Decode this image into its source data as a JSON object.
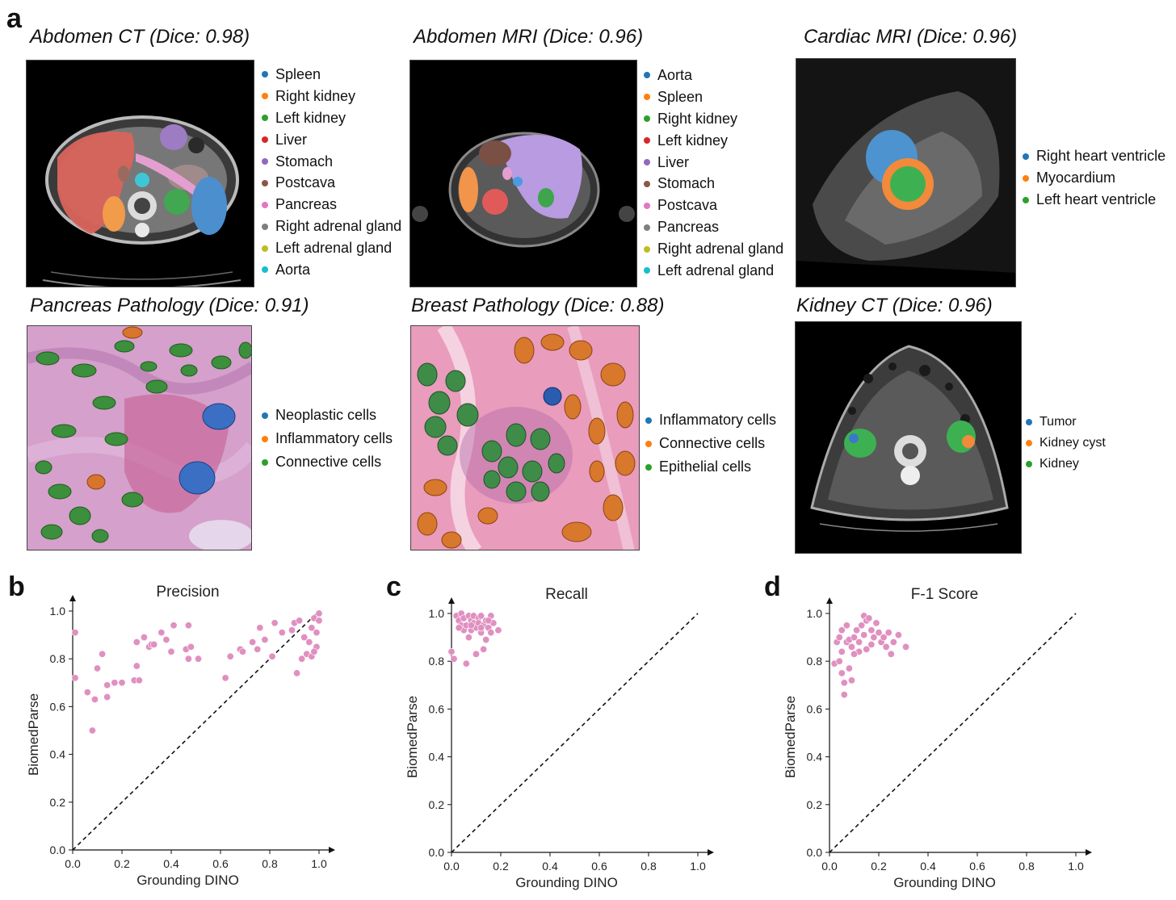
{
  "panels": {
    "a_letter": "a",
    "b_letter": "b",
    "c_letter": "c",
    "d_letter": "d"
  },
  "seg_panels": [
    {
      "title": "Abdomen CT (Dice: 0.98)",
      "legend": [
        {
          "label": "Spleen",
          "color": "#1f77b4"
        },
        {
          "label": "Right kidney",
          "color": "#ff7f0e"
        },
        {
          "label": "Left kidney",
          "color": "#2ca02c"
        },
        {
          "label": "Liver",
          "color": "#d62728"
        },
        {
          "label": "Stomach",
          "color": "#9467bd"
        },
        {
          "label": "Postcava",
          "color": "#8c564b"
        },
        {
          "label": "Pancreas",
          "color": "#e377c2"
        },
        {
          "label": "Right adrenal gland",
          "color": "#7f7f7f"
        },
        {
          "label": "Left adrenal gland",
          "color": "#bcbd22"
        },
        {
          "label": "Aorta",
          "color": "#17becf"
        }
      ]
    },
    {
      "title": "Abdomen MRI (Dice: 0.96)",
      "legend": [
        {
          "label": "Aorta",
          "color": "#1f77b4"
        },
        {
          "label": "Spleen",
          "color": "#ff7f0e"
        },
        {
          "label": "Right kidney",
          "color": "#2ca02c"
        },
        {
          "label": "Left kidney",
          "color": "#d62728"
        },
        {
          "label": "Liver",
          "color": "#9467bd"
        },
        {
          "label": "Stomach",
          "color": "#8c564b"
        },
        {
          "label": "Postcava",
          "color": "#e377c2"
        },
        {
          "label": "Pancreas",
          "color": "#7f7f7f"
        },
        {
          "label": "Right adrenal gland",
          "color": "#bcbd22"
        },
        {
          "label": "Left adrenal gland",
          "color": "#17becf"
        }
      ]
    },
    {
      "title": "Cardiac MRI (Dice: 0.96)",
      "legend": [
        {
          "label": "Right heart ventricle",
          "color": "#1f77b4"
        },
        {
          "label": "Myocardium",
          "color": "#ff7f0e"
        },
        {
          "label": "Left heart ventricle",
          "color": "#2ca02c"
        }
      ]
    },
    {
      "title": "Pancreas Pathology (Dice: 0.91)",
      "legend": [
        {
          "label": "Neoplastic cells",
          "color": "#1f77b4"
        },
        {
          "label": "Inflammatory cells",
          "color": "#ff7f0e"
        },
        {
          "label": "Connective cells",
          "color": "#2ca02c"
        }
      ]
    },
    {
      "title": "Breast Pathology (Dice: 0.88)",
      "legend": [
        {
          "label": "Inflammatory cells",
          "color": "#1f77b4"
        },
        {
          "label": "Connective cells",
          "color": "#ff7f0e"
        },
        {
          "label": "Epithelial cells",
          "color": "#2ca02c"
        }
      ]
    },
    {
      "title": "Kidney CT (Dice: 0.96)",
      "legend": [
        {
          "label": "Tumor",
          "color": "#1f77b4"
        },
        {
          "label": "Kidney cyst",
          "color": "#ff7f0e"
        },
        {
          "label": "Kidney",
          "color": "#2ca02c"
        }
      ]
    }
  ],
  "chart_data": [
    {
      "type": "scatter",
      "title": "Precision",
      "xlabel": "Grounding DINO",
      "ylabel": "BiomedParse",
      "xlim": [
        0,
        1.0
      ],
      "ylim": [
        0,
        1.0
      ],
      "xticks": [
        "0.0",
        "0.2",
        "0.4",
        "0.6",
        "0.8",
        "1.0"
      ],
      "yticks": [
        "0.0",
        "0.2",
        "0.4",
        "0.6",
        "0.8",
        "1.0"
      ],
      "marker_color": "#e090c0",
      "diagonal": true,
      "points": [
        [
          0.01,
          0.91
        ],
        [
          0.01,
          0.72
        ],
        [
          0.06,
          0.66
        ],
        [
          0.08,
          0.5
        ],
        [
          0.09,
          0.63
        ],
        [
          0.1,
          0.76
        ],
        [
          0.12,
          0.82
        ],
        [
          0.14,
          0.69
        ],
        [
          0.14,
          0.64
        ],
        [
          0.17,
          0.7
        ],
        [
          0.2,
          0.7
        ],
        [
          0.25,
          0.71
        ],
        [
          0.26,
          0.77
        ],
        [
          0.26,
          0.87
        ],
        [
          0.27,
          0.71
        ],
        [
          0.29,
          0.89
        ],
        [
          0.31,
          0.85
        ],
        [
          0.32,
          0.86
        ],
        [
          0.33,
          0.86
        ],
        [
          0.36,
          0.91
        ],
        [
          0.38,
          0.88
        ],
        [
          0.4,
          0.83
        ],
        [
          0.41,
          0.94
        ],
        [
          0.46,
          0.84
        ],
        [
          0.47,
          0.94
        ],
        [
          0.47,
          0.8
        ],
        [
          0.48,
          0.85
        ],
        [
          0.51,
          0.8
        ],
        [
          0.62,
          0.72
        ],
        [
          0.64,
          0.81
        ],
        [
          0.68,
          0.84
        ],
        [
          0.69,
          0.83
        ],
        [
          0.73,
          0.87
        ],
        [
          0.75,
          0.84
        ],
        [
          0.76,
          0.93
        ],
        [
          0.78,
          0.88
        ],
        [
          0.81,
          0.81
        ],
        [
          0.82,
          0.95
        ],
        [
          0.85,
          0.91
        ],
        [
          0.89,
          0.92
        ],
        [
          0.9,
          0.95
        ],
        [
          0.91,
          0.74
        ],
        [
          0.92,
          0.96
        ],
        [
          0.93,
          0.8
        ],
        [
          0.94,
          0.89
        ],
        [
          0.95,
          0.82
        ],
        [
          0.96,
          0.87
        ],
        [
          0.97,
          0.81
        ],
        [
          0.97,
          0.93
        ],
        [
          0.98,
          0.97
        ],
        [
          0.99,
          0.85
        ],
        [
          0.99,
          0.91
        ],
        [
          1.0,
          0.99
        ],
        [
          1.0,
          0.96
        ],
        [
          0.98,
          0.83
        ]
      ]
    },
    {
      "type": "scatter",
      "title": "Recall",
      "xlabel": "Grounding DINO",
      "ylabel": "BiomedParse",
      "xlim": [
        0,
        1.0
      ],
      "ylim": [
        0,
        1.0
      ],
      "xticks": [
        "0.0",
        "0.2",
        "0.4",
        "0.6",
        "0.8",
        "1.0"
      ],
      "yticks": [
        "0.0",
        "0.2",
        "0.4",
        "0.6",
        "0.8",
        "1.0"
      ],
      "marker_color": "#e090c0",
      "diagonal": true,
      "points": [
        [
          0.0,
          0.84
        ],
        [
          0.01,
          0.81
        ],
        [
          0.02,
          0.99
        ],
        [
          0.03,
          0.97
        ],
        [
          0.04,
          1.0
        ],
        [
          0.04,
          0.95
        ],
        [
          0.05,
          0.98
        ],
        [
          0.05,
          0.93
        ],
        [
          0.06,
          0.79
        ],
        [
          0.06,
          0.95
        ],
        [
          0.07,
          0.99
        ],
        [
          0.07,
          0.9
        ],
        [
          0.08,
          0.97
        ],
        [
          0.08,
          0.93
        ],
        [
          0.09,
          0.99
        ],
        [
          0.09,
          0.96
        ],
        [
          0.1,
          0.94
        ],
        [
          0.1,
          0.83
        ],
        [
          0.11,
          0.98
        ],
        [
          0.11,
          0.96
        ],
        [
          0.12,
          0.92
        ],
        [
          0.12,
          0.99
        ],
        [
          0.13,
          0.95
        ],
        [
          0.13,
          0.85
        ],
        [
          0.14,
          0.97
        ],
        [
          0.14,
          0.89
        ],
        [
          0.15,
          0.94
        ],
        [
          0.16,
          0.99
        ],
        [
          0.16,
          0.92
        ],
        [
          0.17,
          0.96
        ],
        [
          0.19,
          0.93
        ],
        [
          0.03,
          0.94
        ],
        [
          0.08,
          0.95
        ],
        [
          0.12,
          0.94
        ],
        [
          0.15,
          0.97
        ]
      ]
    },
    {
      "type": "scatter",
      "title": "F-1 Score",
      "xlabel": "Grounding DINO",
      "ylabel": "BiomedParse",
      "xlim": [
        0,
        1.0
      ],
      "ylim": [
        0,
        1.0
      ],
      "xticks": [
        "0.0",
        "0.2",
        "0.4",
        "0.6",
        "0.8",
        "1.0"
      ],
      "yticks": [
        "0.0",
        "0.2",
        "0.4",
        "0.6",
        "0.8",
        "1.0"
      ],
      "marker_color": "#e090c0",
      "diagonal": true,
      "points": [
        [
          0.02,
          0.79
        ],
        [
          0.03,
          0.88
        ],
        [
          0.04,
          0.9
        ],
        [
          0.04,
          0.8
        ],
        [
          0.05,
          0.93
        ],
        [
          0.05,
          0.84
        ],
        [
          0.05,
          0.75
        ],
        [
          0.06,
          0.66
        ],
        [
          0.06,
          0.71
        ],
        [
          0.07,
          0.95
        ],
        [
          0.07,
          0.88
        ],
        [
          0.08,
          0.89
        ],
        [
          0.08,
          0.77
        ],
        [
          0.09,
          0.86
        ],
        [
          0.09,
          0.72
        ],
        [
          0.1,
          0.9
        ],
        [
          0.11,
          0.93
        ],
        [
          0.12,
          0.88
        ],
        [
          0.12,
          0.84
        ],
        [
          0.13,
          0.95
        ],
        [
          0.14,
          0.99
        ],
        [
          0.14,
          0.91
        ],
        [
          0.15,
          0.97
        ],
        [
          0.15,
          0.85
        ],
        [
          0.16,
          0.98
        ],
        [
          0.17,
          0.93
        ],
        [
          0.18,
          0.9
        ],
        [
          0.19,
          0.96
        ],
        [
          0.2,
          0.92
        ],
        [
          0.21,
          0.88
        ],
        [
          0.22,
          0.9
        ],
        [
          0.23,
          0.86
        ],
        [
          0.24,
          0.92
        ],
        [
          0.25,
          0.83
        ],
        [
          0.26,
          0.88
        ],
        [
          0.28,
          0.91
        ],
        [
          0.31,
          0.86
        ],
        [
          0.1,
          0.83
        ],
        [
          0.17,
          0.87
        ]
      ]
    }
  ]
}
